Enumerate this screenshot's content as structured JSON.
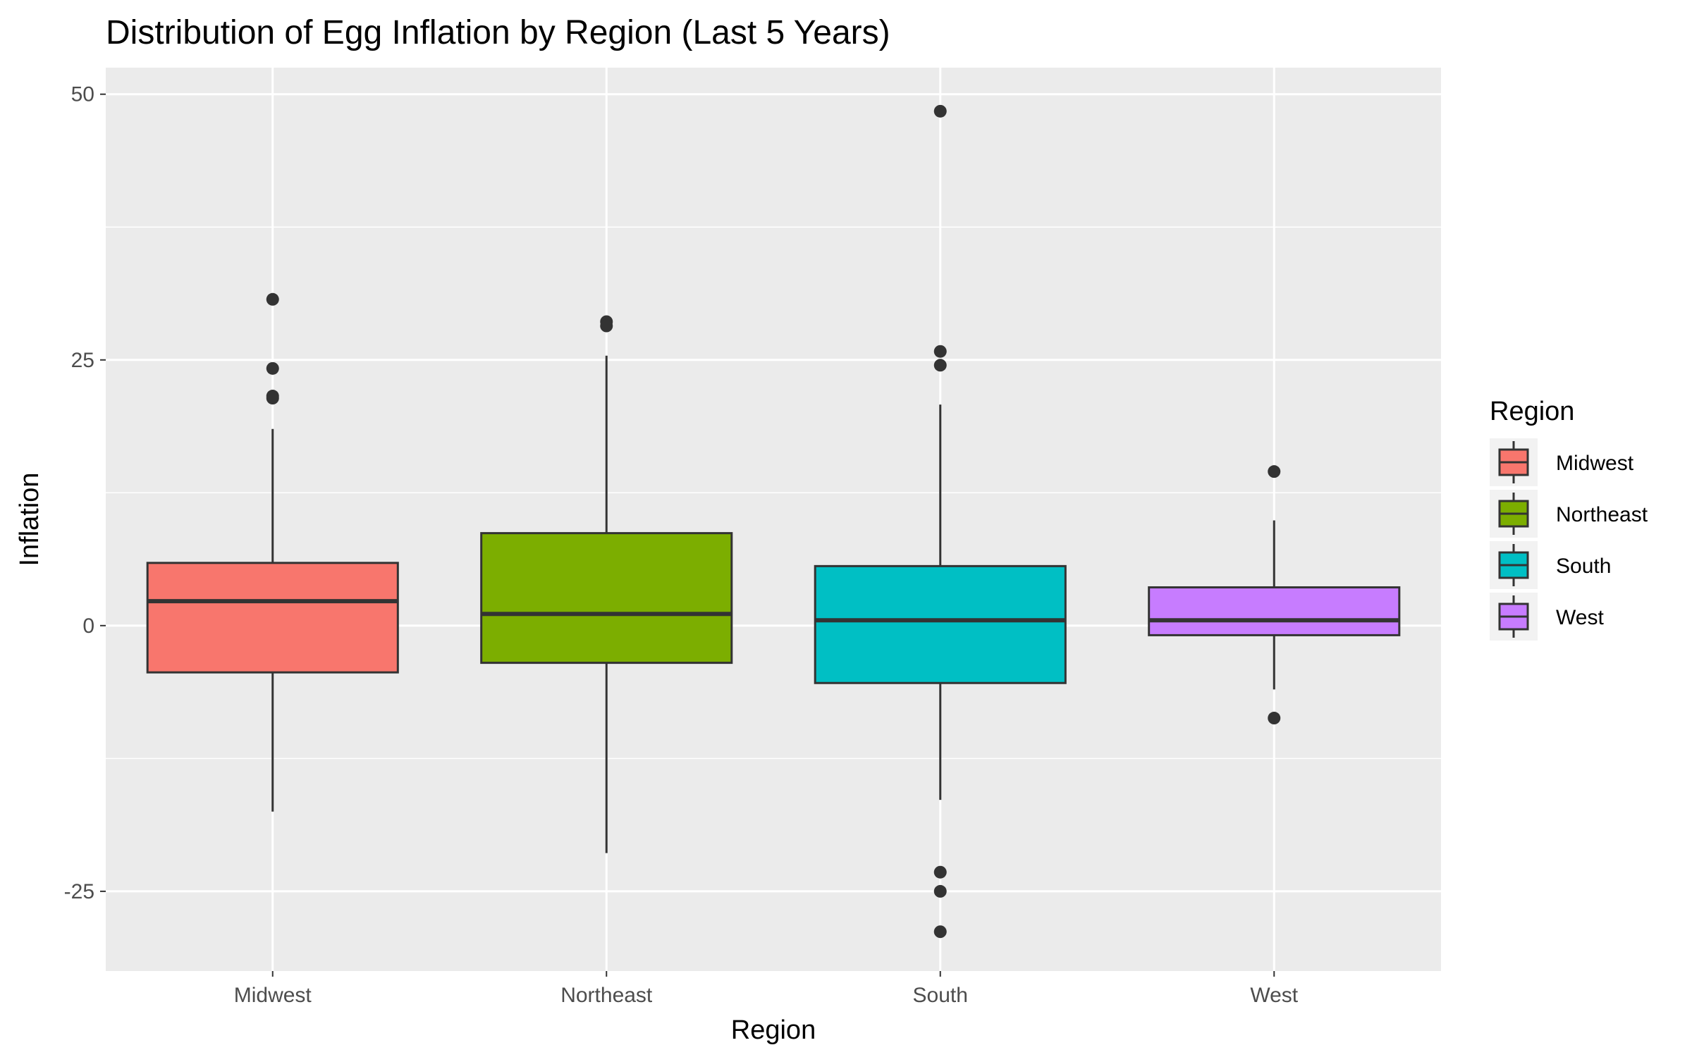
{
  "chart_data": {
    "type": "boxplot",
    "title": "Distribution of Egg Inflation by Region (Last 5 Years)",
    "xlabel": "Region",
    "ylabel": "Inflation",
    "ylim": [
      -32.5,
      52.5
    ],
    "yticks": [
      -25,
      0,
      25,
      50
    ],
    "ytick_labels": [
      "-25",
      "0",
      "25",
      "50"
    ],
    "grid": true,
    "legend": {
      "title": "Region",
      "placement": "right"
    },
    "categories": [
      "Midwest",
      "Northeast",
      "South",
      "West"
    ],
    "series": [
      {
        "name": "Midwest",
        "color": "#F8766D",
        "whisker_low": -17.5,
        "q1": -4.4,
        "median": 2.3,
        "q3": 5.9,
        "whisker_high": 18.5,
        "outliers": [
          30.7,
          24.2,
          21.4,
          21.6
        ]
      },
      {
        "name": "Northeast",
        "color": "#7CAE00",
        "whisker_low": -21.4,
        "q1": -3.5,
        "median": 1.1,
        "q3": 8.7,
        "whisker_high": 25.4,
        "outliers": [
          28.6,
          28.2
        ]
      },
      {
        "name": "South",
        "color": "#00BFC4",
        "whisker_low": -16.4,
        "q1": -5.4,
        "median": 0.5,
        "q3": 5.6,
        "whisker_high": 20.8,
        "outliers": [
          48.4,
          25.8,
          24.5,
          -23.2,
          -25.0,
          -28.8
        ]
      },
      {
        "name": "West",
        "color": "#C77CFF",
        "whisker_low": -6.0,
        "q1": -0.9,
        "median": 0.5,
        "q3": 3.6,
        "whisker_high": 9.9,
        "outliers": [
          14.5,
          -8.7
        ]
      }
    ]
  }
}
